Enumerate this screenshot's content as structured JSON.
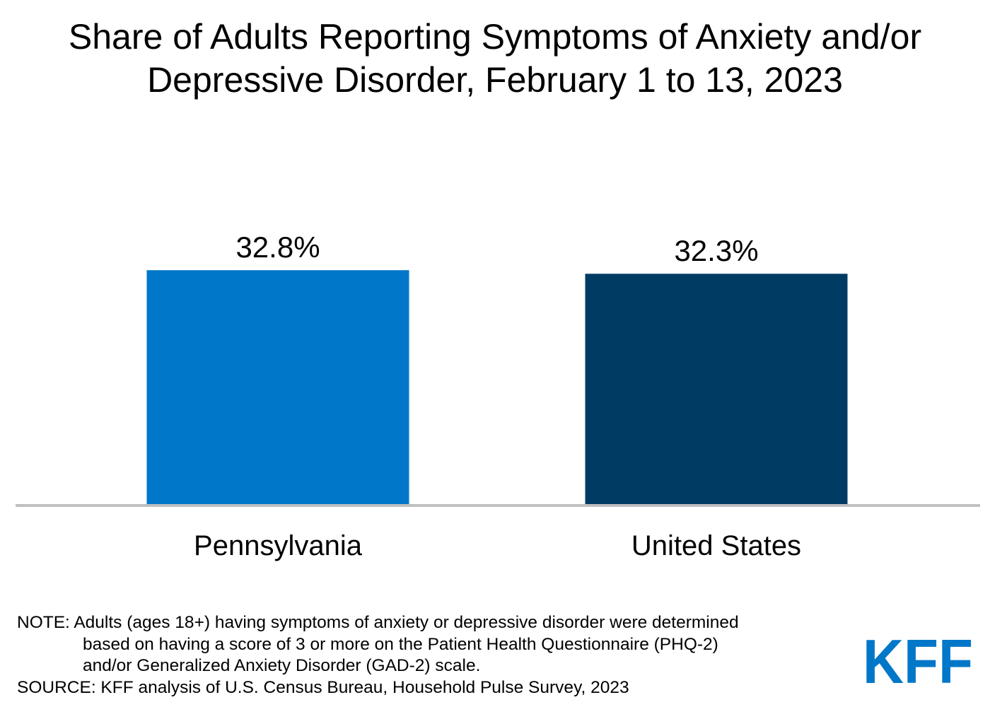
{
  "title_line1": "Share of Adults Reporting Symptoms of Anxiety and/or",
  "title_line2": "Depressive Disorder, February 1 to 13, 2023",
  "chart_data": {
    "type": "bar",
    "title": "Share of Adults Reporting Symptoms of Anxiety and/or Depressive Disorder, February 1 to 13, 2023",
    "categories": [
      "Pennsylvania",
      "United States"
    ],
    "values": [
      32.8,
      32.3
    ],
    "data_labels": [
      "32.8%",
      "32.3%"
    ],
    "colors": [
      "#0077c8",
      "#003b64"
    ],
    "ylim": [
      0,
      60
    ],
    "grid": false,
    "axis_color": "#c0c0c0"
  },
  "note": {
    "line1": "NOTE: Adults (ages 18+) having symptoms of anxiety or depressive disorder were determined",
    "line2": "based on having a score of 3 or more on the Patient Health Questionnaire (PHQ-2)",
    "line3": "and/or Generalized Anxiety Disorder (GAD-2) scale.",
    "source": "SOURCE: KFF analysis of U.S. Census Bureau, Household Pulse Survey, 2023"
  },
  "logo": {
    "text": "KFF",
    "color": "#0077c8"
  }
}
